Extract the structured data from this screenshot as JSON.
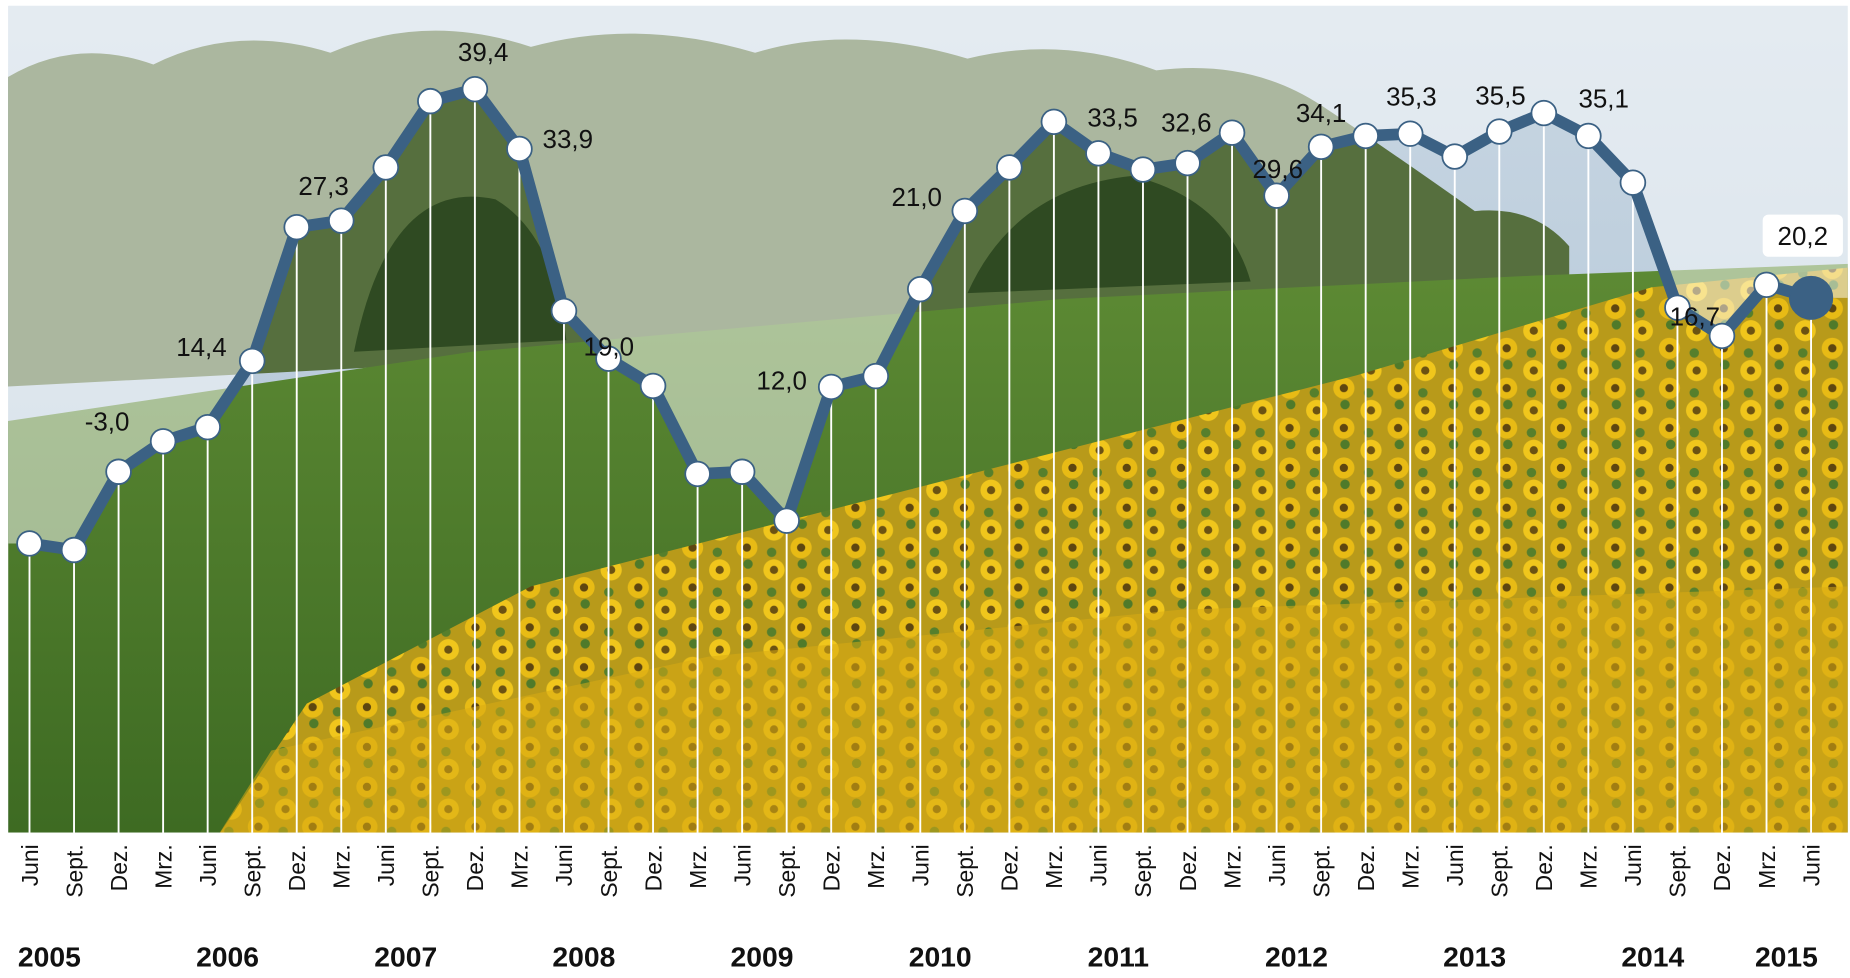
{
  "chart_data": {
    "type": "line",
    "categories": [
      "Juni",
      "Sept.",
      "Dez.",
      "Mrz.",
      "Juni",
      "Sept.",
      "Dez.",
      "Mrz.",
      "Juni",
      "Sept.",
      "Dez.",
      "Mrz.",
      "Juni",
      "Sept.",
      "Dez.",
      "Mrz.",
      "Juni",
      "Sept.",
      "Dez.",
      "Mrz.",
      "Juni",
      "Sept.",
      "Dez.",
      "Mrz.",
      "Juni",
      "Sept.",
      "Dez.",
      "Mrz.",
      "Juni",
      "Sept.",
      "Dez.",
      "Mrz.",
      "Juni",
      "Sept.",
      "Dez.",
      "Mrz.",
      "Juni",
      "Sept.",
      "Dez.",
      "Mrz.",
      "Juni"
    ],
    "years": [
      "2005",
      "2006",
      "2007",
      "2008",
      "2009",
      "2010",
      "2011",
      "2012",
      "2013",
      "2014",
      "2015"
    ],
    "values": [
      -2.4,
      -3.0,
      4.2,
      7.0,
      8.3,
      14.4,
      26.7,
      27.3,
      32.2,
      38.3,
      39.4,
      33.9,
      19.0,
      14.6,
      12.1,
      4.0,
      4.2,
      -0.3,
      12.0,
      13.0,
      21.0,
      28.2,
      32.2,
      36.4,
      33.5,
      32.0,
      32.6,
      35.4,
      29.6,
      34.1,
      35.1,
      35.3,
      33.2,
      35.5,
      37.2,
      35.1,
      30.8,
      19.3,
      16.7,
      21.4,
      20.2
    ],
    "value_labels": [
      null,
      "-3,0",
      null,
      null,
      null,
      "14,4",
      null,
      "27,3",
      null,
      null,
      "39,4",
      "33,9",
      "19,0",
      null,
      null,
      null,
      null,
      null,
      "12,0",
      null,
      "21,0",
      null,
      null,
      null,
      "33,5",
      null,
      "32,6",
      null,
      "29,6",
      "34,1",
      null,
      "35,3",
      null,
      "35,5",
      null,
      "35,1",
      null,
      null,
      "16,7",
      null,
      "20,2"
    ],
    "color": "#3b6184",
    "ylim": [
      -29,
      47
    ]
  }
}
